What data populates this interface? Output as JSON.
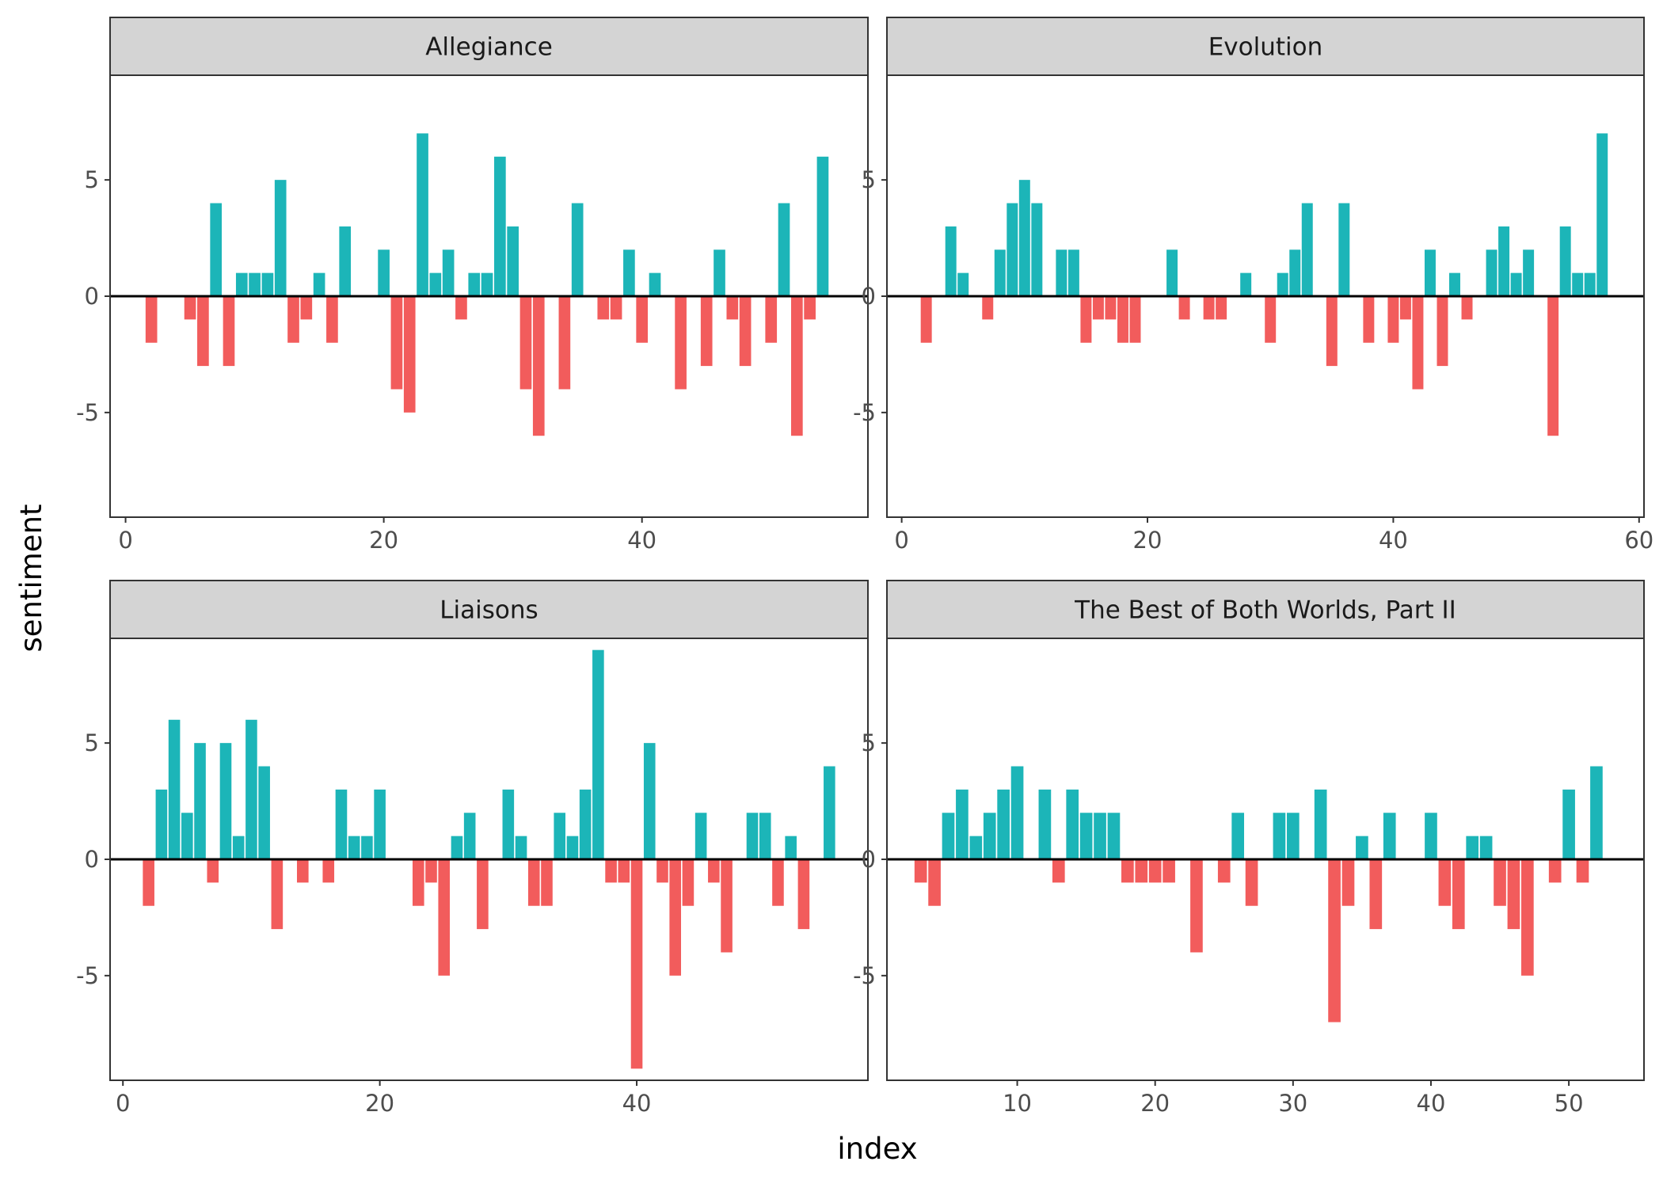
{
  "chart_data": {
    "type": "bar",
    "xlabel": "index",
    "ylabel": "sentiment",
    "ylim": [
      -9.5,
      9.5
    ],
    "y_ticks": [
      -5,
      0,
      5
    ],
    "y_tick_labels": [
      "-5",
      "0",
      "5"
    ],
    "grid": false,
    "legend": "none",
    "colors": {
      "positive": "#1CB5B8",
      "negative": "#F25C5C",
      "zero_line": "#000000",
      "strip_fill": "#D4D4D4"
    },
    "panels": [
      {
        "title": "Allegiance",
        "xlim": [
          -1.2,
          57.5
        ],
        "x_ticks": [
          0,
          20,
          40
        ],
        "x_tick_labels": [
          "0",
          "20",
          "40"
        ],
        "x": [
          2,
          5,
          6,
          7,
          8,
          9,
          10,
          11,
          12,
          13,
          14,
          15,
          16,
          17,
          20,
          21,
          22,
          23,
          24,
          25,
          26,
          27,
          28,
          29,
          30,
          31,
          32,
          34,
          35,
          37,
          38,
          39,
          40,
          41,
          43,
          45,
          46,
          47,
          48,
          50,
          51,
          52,
          53,
          54
        ],
        "values": [
          -2,
          -1,
          -3,
          4,
          -3,
          1,
          1,
          1,
          5,
          -2,
          -1,
          1,
          -2,
          3,
          2,
          -4,
          -5,
          7,
          1,
          2,
          -1,
          1,
          1,
          6,
          3,
          -4,
          -6,
          -4,
          4,
          -1,
          -1,
          2,
          -2,
          1,
          -4,
          -3,
          2,
          -1,
          -3,
          -2,
          4,
          -6,
          -1,
          6
        ]
      },
      {
        "title": "Evolution",
        "xlim": [
          -1.2,
          60.4
        ],
        "x_ticks": [
          0,
          20,
          40,
          60
        ],
        "x_tick_labels": [
          "0",
          "20",
          "40",
          "60"
        ],
        "x": [
          2,
          4,
          5,
          7,
          8,
          9,
          10,
          11,
          13,
          14,
          15,
          16,
          17,
          18,
          19,
          22,
          23,
          25,
          26,
          28,
          30,
          31,
          32,
          33,
          35,
          36,
          38,
          40,
          41,
          42,
          43,
          44,
          45,
          46,
          48,
          49,
          50,
          51,
          53,
          54,
          55,
          56,
          57
        ],
        "values": [
          -2,
          3,
          1,
          -1,
          2,
          4,
          5,
          4,
          2,
          2,
          -2,
          -1,
          -1,
          -2,
          -2,
          2,
          -1,
          -1,
          -1,
          1,
          -2,
          1,
          2,
          4,
          -3,
          4,
          -2,
          -2,
          -1,
          -4,
          2,
          -3,
          1,
          -1,
          2,
          3,
          1,
          2,
          -6,
          3,
          1,
          1,
          7
        ]
      },
      {
        "title": "Liaisons",
        "xlim": [
          -1.0,
          58.0
        ],
        "x_ticks": [
          0,
          20,
          40
        ],
        "x_tick_labels": [
          "0",
          "20",
          "40"
        ],
        "x": [
          2,
          3,
          4,
          5,
          6,
          7,
          8,
          9,
          10,
          11,
          12,
          14,
          16,
          17,
          18,
          19,
          20,
          23,
          24,
          25,
          26,
          27,
          28,
          30,
          31,
          32,
          33,
          34,
          35,
          36,
          37,
          38,
          39,
          40,
          41,
          42,
          43,
          44,
          45,
          46,
          47,
          49,
          50,
          51,
          52,
          53,
          55
        ],
        "values": [
          -2,
          3,
          6,
          2,
          5,
          -1,
          5,
          1,
          6,
          4,
          -3,
          -1,
          -1,
          3,
          1,
          1,
          3,
          -2,
          -1,
          -5,
          1,
          2,
          -3,
          3,
          1,
          -2,
          -2,
          2,
          1,
          3,
          9,
          -1,
          -1,
          -9,
          5,
          -1,
          -5,
          -2,
          2,
          -1,
          -4,
          2,
          2,
          -2,
          1,
          -3,
          4
        ]
      },
      {
        "title": "The Best of Both Worlds, Part II",
        "xlim": [
          0.55,
          55.45
        ],
        "x_ticks": [
          10,
          20,
          30,
          40,
          50
        ],
        "x_tick_labels": [
          "10",
          "20",
          "30",
          "40",
          "50"
        ],
        "x": [
          3,
          4,
          5,
          6,
          7,
          8,
          9,
          10,
          12,
          13,
          14,
          15,
          16,
          17,
          18,
          19,
          20,
          21,
          23,
          25,
          26,
          27,
          29,
          30,
          32,
          33,
          34,
          35,
          36,
          37,
          40,
          41,
          42,
          43,
          44,
          45,
          46,
          47,
          49,
          50,
          51,
          52
        ],
        "values": [
          -1,
          -2,
          2,
          3,
          1,
          2,
          3,
          4,
          3,
          -1,
          3,
          2,
          2,
          2,
          -1,
          -1,
          -1,
          -1,
          -4,
          -1,
          2,
          -2,
          2,
          2,
          3,
          -7,
          -2,
          1,
          -3,
          2,
          2,
          -2,
          -3,
          1,
          1,
          -2,
          -3,
          -5,
          -1,
          3,
          -1,
          4
        ]
      }
    ]
  }
}
